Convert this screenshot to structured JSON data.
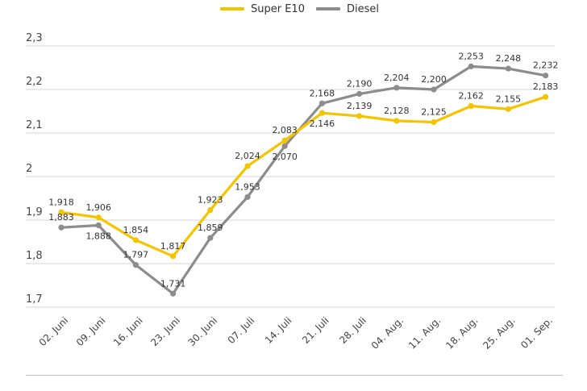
{
  "chart_data": {
    "type": "line",
    "categories": [
      "02. Juni",
      "09. Juni",
      "16. Juni",
      "23. Juni",
      "30. Juni",
      "07. Juli",
      "14. Juli",
      "21. Juli",
      "28. Juli",
      "04. Aug.",
      "11. Aug.",
      "18. Aug.",
      "25. Aug.",
      "01. Sep."
    ],
    "series": [
      {
        "name": "Super E10",
        "color": "#f5c400",
        "values": [
          1.918,
          1.906,
          1.854,
          1.817,
          1.923,
          2.024,
          2.083,
          2.146,
          2.139,
          2.128,
          2.125,
          2.162,
          2.155,
          2.183
        ],
        "labels": [
          "1,918",
          "1,906",
          "1,854",
          "1,817",
          "1,923",
          "2,024",
          "2,083",
          "2,146",
          "2,139",
          "2,128",
          "2,125",
          "2,162",
          "2,155",
          "2,183"
        ]
      },
      {
        "name": "Diesel",
        "color": "#8c8c8c",
        "values": [
          1.883,
          1.888,
          1.797,
          1.731,
          1.859,
          1.953,
          2.07,
          2.168,
          2.19,
          2.204,
          2.2,
          2.253,
          2.248,
          2.232
        ],
        "labels": [
          "1,883",
          "1,888",
          "1,797",
          "1,731",
          "1,859",
          "1,953",
          "2,070",
          "2,168",
          "2,190",
          "2,204",
          "2,200",
          "2,253",
          "2,248",
          "2,232"
        ]
      }
    ],
    "ylim": [
      1.7,
      2.3
    ],
    "yticks": [
      {
        "value": 1.7,
        "label": "1,7"
      },
      {
        "value": 1.8,
        "label": "1,8"
      },
      {
        "value": 1.9,
        "label": "1,9"
      },
      {
        "value": 2.0,
        "label": "2"
      },
      {
        "value": 2.1,
        "label": "2,1"
      },
      {
        "value": 2.2,
        "label": "2,2"
      },
      {
        "value": 2.3,
        "label": "2,3"
      }
    ],
    "grid": true,
    "legend_position": "top-center",
    "label_placement": {
      "Super E10": [
        "above",
        "above",
        "above",
        "above",
        "above",
        "above",
        "above",
        "below",
        "above",
        "above",
        "above",
        "above",
        "above",
        "above"
      ],
      "Diesel": [
        "above",
        "below",
        "above",
        "above",
        "above",
        "above",
        "below",
        "above",
        "above",
        "above",
        "above",
        "above",
        "above",
        "above"
      ]
    }
  }
}
